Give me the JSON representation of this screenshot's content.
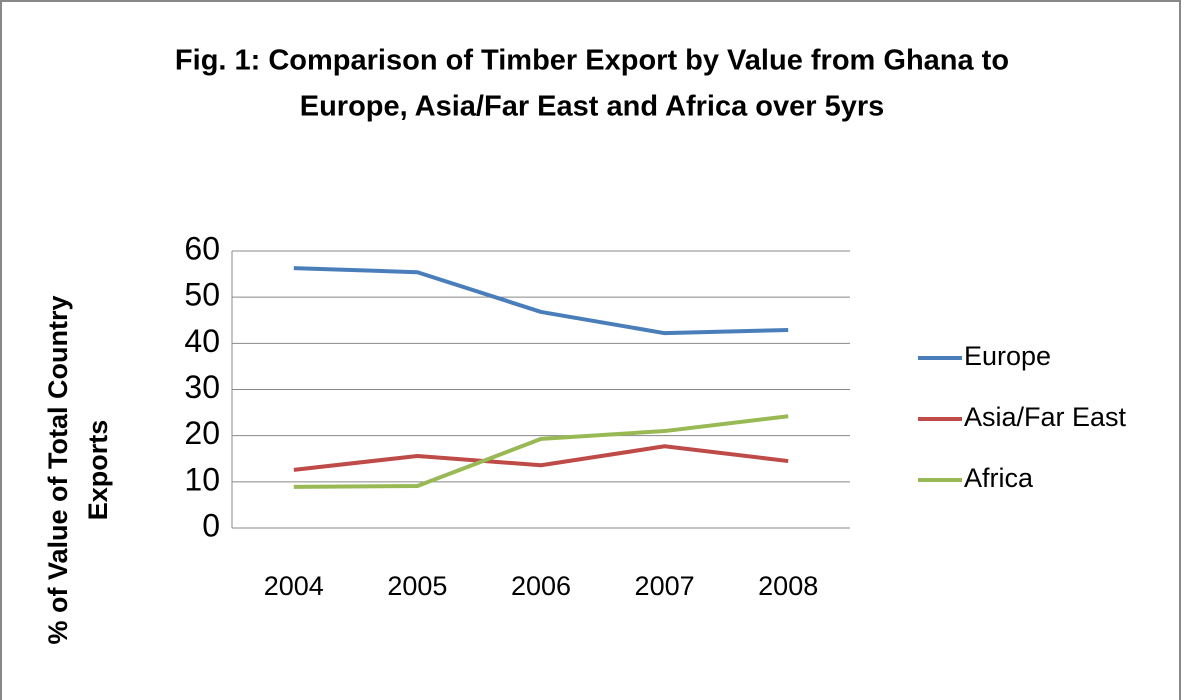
{
  "chart_data": {
    "type": "line",
    "title": [
      "Fig. 1: Comparison of Timber Export by Value from Ghana to",
      "Europe, Asia/Far East and Africa over 5yrs"
    ],
    "ylabel": [
      "% of Value of Total Country",
      "Exports"
    ],
    "categories": [
      "2004",
      "2005",
      "2006",
      "2007",
      "2008"
    ],
    "series": [
      {
        "name": "Europe",
        "color": "#4a7ebb",
        "values": [
          56.3,
          55.4,
          46.8,
          42.2,
          42.9
        ]
      },
      {
        "name": "Asia/Far East",
        "color": "#be4b48",
        "values": [
          12.6,
          15.6,
          13.6,
          17.7,
          14.5
        ]
      },
      {
        "name": "Africa",
        "color": "#98b954",
        "values": [
          8.9,
          9.1,
          19.3,
          21.0,
          24.2
        ]
      }
    ],
    "ylim": [
      0,
      60
    ],
    "yticks": [
      0,
      10,
      20,
      30,
      40,
      50,
      60
    ],
    "grid": true,
    "legend": "right"
  }
}
